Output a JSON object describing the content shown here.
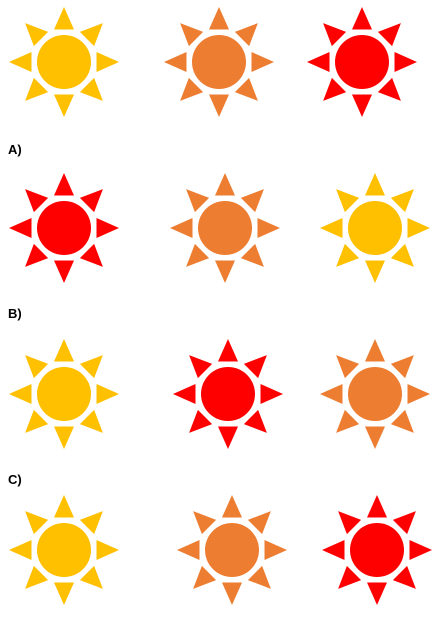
{
  "colors": {
    "yellow": "#FFC000",
    "orange": "#ED7D31",
    "red": "#FF0000"
  },
  "question": {
    "suns": [
      "yellow",
      "orange",
      "red"
    ]
  },
  "options": [
    {
      "label": "A)",
      "suns": [
        "red",
        "orange",
        "yellow"
      ]
    },
    {
      "label": "B)",
      "suns": [
        "yellow",
        "red",
        "orange"
      ]
    },
    {
      "label": "C)",
      "suns": [
        "yellow",
        "orange",
        "red"
      ]
    }
  ]
}
